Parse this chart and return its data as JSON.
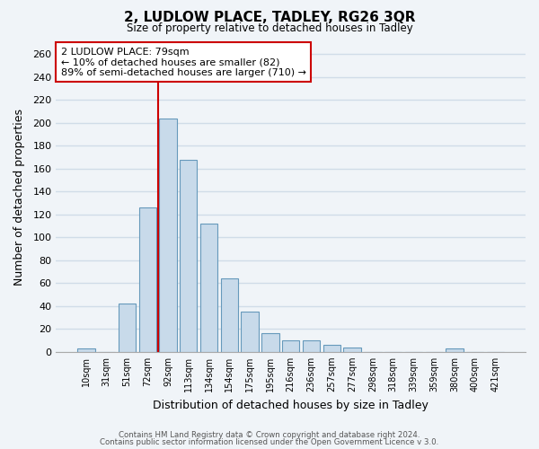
{
  "title": "2, LUDLOW PLACE, TADLEY, RG26 3QR",
  "subtitle": "Size of property relative to detached houses in Tadley",
  "xlabel": "Distribution of detached houses by size in Tadley",
  "ylabel": "Number of detached properties",
  "bar_color": "#c8daea",
  "bar_edge_color": "#6699bb",
  "categories": [
    "10sqm",
    "31sqm",
    "51sqm",
    "72sqm",
    "92sqm",
    "113sqm",
    "134sqm",
    "154sqm",
    "175sqm",
    "195sqm",
    "216sqm",
    "236sqm",
    "257sqm",
    "277sqm",
    "298sqm",
    "318sqm",
    "339sqm",
    "359sqm",
    "380sqm",
    "400sqm",
    "421sqm"
  ],
  "values": [
    3,
    0,
    42,
    126,
    204,
    168,
    112,
    64,
    35,
    16,
    10,
    10,
    6,
    4,
    0,
    0,
    0,
    0,
    3,
    0,
    0
  ],
  "ylim": [
    0,
    270
  ],
  "yticks": [
    0,
    20,
    40,
    60,
    80,
    100,
    120,
    140,
    160,
    180,
    200,
    220,
    240,
    260
  ],
  "red_line_x": 3.5,
  "marker_label": "2 LUDLOW PLACE: 79sqm",
  "annotation_line1": "← 10% of detached houses are smaller (82)",
  "annotation_line2": "89% of semi-detached houses are larger (710) →",
  "footer1": "Contains HM Land Registry data © Crown copyright and database right 2024.",
  "footer2": "Contains public sector information licensed under the Open Government Licence v 3.0.",
  "background_color": "#f0f4f8",
  "plot_bg_color": "#f0f4f8",
  "grid_color": "#d0dce8"
}
